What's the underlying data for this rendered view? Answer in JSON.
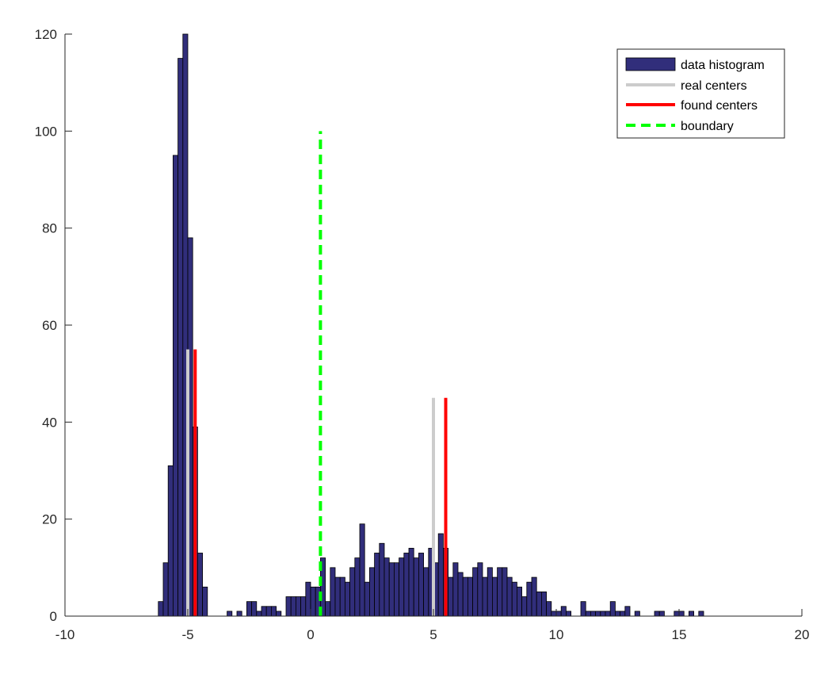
{
  "chart_data": {
    "type": "bar",
    "title": "",
    "xlabel": "",
    "ylabel": "",
    "xlim": [
      -10,
      20
    ],
    "ylim": [
      0,
      120
    ],
    "xticks": [
      -10,
      -5,
      0,
      5,
      10,
      15,
      20
    ],
    "yticks": [
      0,
      20,
      40,
      60,
      80,
      100,
      120
    ],
    "grid": false,
    "legend_position": "top-right",
    "bin_width": 0.2,
    "colors": {
      "bar_fill": "#312e7b",
      "bar_edge": "#000000",
      "real_centers": "#cccccc",
      "found_centers": "#ff0000",
      "boundary": "#00ff00"
    },
    "series": [
      {
        "name": "data histogram",
        "kind": "histogram",
        "x": [
          -6.1,
          -5.9,
          -5.7,
          -5.5,
          -5.3,
          -5.1,
          -4.9,
          -4.7,
          -4.5,
          -4.3,
          -4.1,
          -3.3,
          -2.9,
          -2.5,
          -2.3,
          -2.1,
          -1.9,
          -1.7,
          -1.5,
          -1.3,
          -0.9,
          -0.7,
          -0.5,
          -0.3,
          -0.1,
          0.1,
          0.3,
          0.5,
          0.7,
          0.9,
          1.1,
          1.3,
          1.5,
          1.7,
          1.9,
          2.1,
          2.3,
          2.5,
          2.7,
          2.9,
          3.1,
          3.3,
          3.5,
          3.7,
          3.9,
          4.1,
          4.3,
          4.5,
          4.7,
          4.9,
          5.1,
          5.3,
          5.5,
          5.7,
          5.9,
          6.1,
          6.3,
          6.5,
          6.7,
          6.9,
          7.1,
          7.3,
          7.5,
          7.7,
          7.9,
          8.1,
          8.3,
          8.5,
          8.7,
          8.9,
          9.1,
          9.3,
          9.5,
          9.7,
          9.9,
          10.1,
          10.3,
          10.5,
          11.1,
          11.3,
          11.5,
          11.7,
          11.9,
          12.1,
          12.3,
          12.5,
          12.7,
          12.9,
          13.3,
          14.1,
          14.3,
          14.9,
          15.1,
          15.5,
          15.9
        ],
        "values": [
          3,
          11,
          31,
          95,
          115,
          120,
          78,
          39,
          13,
          6,
          0,
          1,
          1,
          3,
          3,
          1,
          2,
          2,
          2,
          1,
          4,
          4,
          4,
          4,
          7,
          6,
          6,
          12,
          3,
          10,
          8,
          8,
          7,
          10,
          12,
          19,
          7,
          10,
          13,
          15,
          12,
          11,
          11,
          12,
          13,
          14,
          12,
          13,
          10,
          14,
          11,
          17,
          14,
          8,
          11,
          9,
          8,
          8,
          10,
          11,
          8,
          10,
          8,
          10,
          10,
          8,
          7,
          6,
          4,
          7,
          8,
          5,
          5,
          3,
          1,
          1,
          2,
          1,
          3,
          1,
          1,
          1,
          1,
          1,
          3,
          1,
          1,
          2,
          1,
          1,
          1,
          1,
          1,
          1,
          1
        ]
      },
      {
        "name": "real centers",
        "kind": "vline",
        "x": [
          -5,
          5
        ],
        "y_top": [
          55,
          45
        ]
      },
      {
        "name": "found centers",
        "kind": "vline",
        "x": [
          -4.7,
          5.5
        ],
        "y_top": [
          55,
          45
        ]
      },
      {
        "name": "boundary",
        "kind": "vline-dashed",
        "x": [
          0.4
        ],
        "y_top": [
          100
        ]
      }
    ]
  }
}
